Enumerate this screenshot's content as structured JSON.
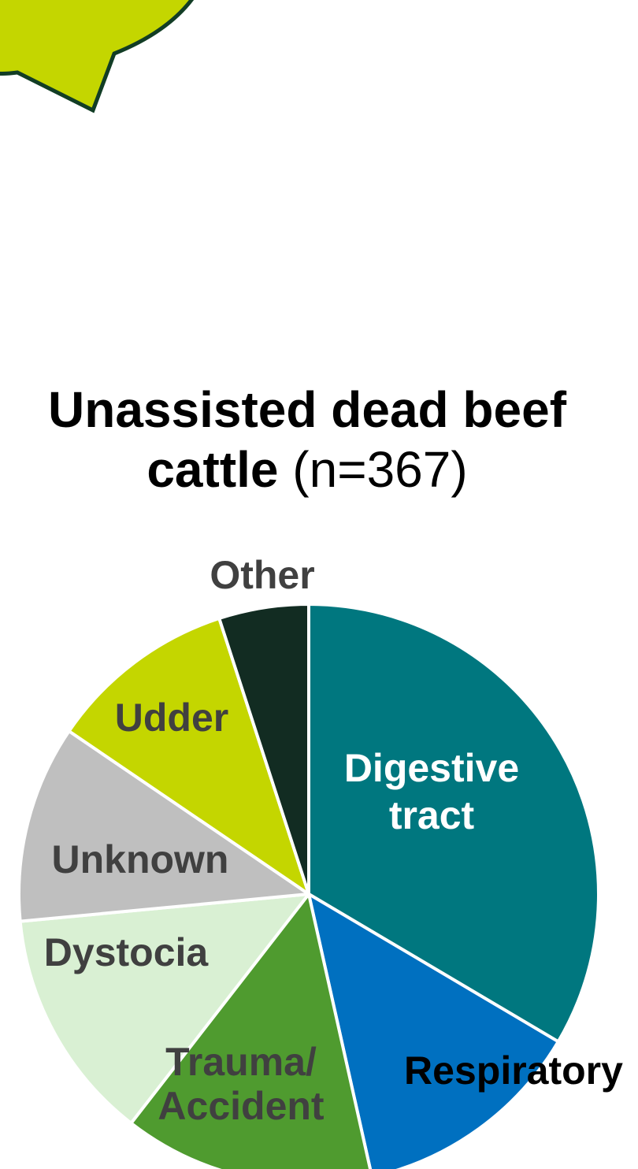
{
  "chart_data": {
    "type": "pie",
    "title_bold": "Unassisted dead beef cattle",
    "title_suffix": "(n=367)",
    "categories": [
      "Digestive tract",
      "Respiratory",
      "Trauma/ Accident",
      "Dystocia",
      "Unknown",
      "Udder",
      "Other"
    ],
    "values": [
      33.5,
      13.0,
      14.0,
      13.0,
      11.0,
      10.5,
      5.0
    ],
    "unit": "percent of deaths (estimated from slice sizes)",
    "colors": [
      "#00777f",
      "#0070c0",
      "#4f9b2f",
      "#d9f0d3",
      "#bfbfbf",
      "#c4d600",
      "#122c22"
    ],
    "label_colors": [
      "#ffffff",
      "#000000",
      "#404040",
      "#404040",
      "#404040",
      "#404040",
      "#404040"
    ],
    "label_lines": [
      [
        "Digestive",
        "tract"
      ],
      [
        "Respiratory"
      ],
      [
        "Trauma/",
        "Accident"
      ],
      [
        "Dystocia"
      ],
      [
        "Unknown"
      ],
      [
        "Udder"
      ],
      [
        "Other"
      ]
    ]
  },
  "decoration": {
    "bubble_fill": "#c4d600",
    "bubble_stroke": "#123d25"
  }
}
